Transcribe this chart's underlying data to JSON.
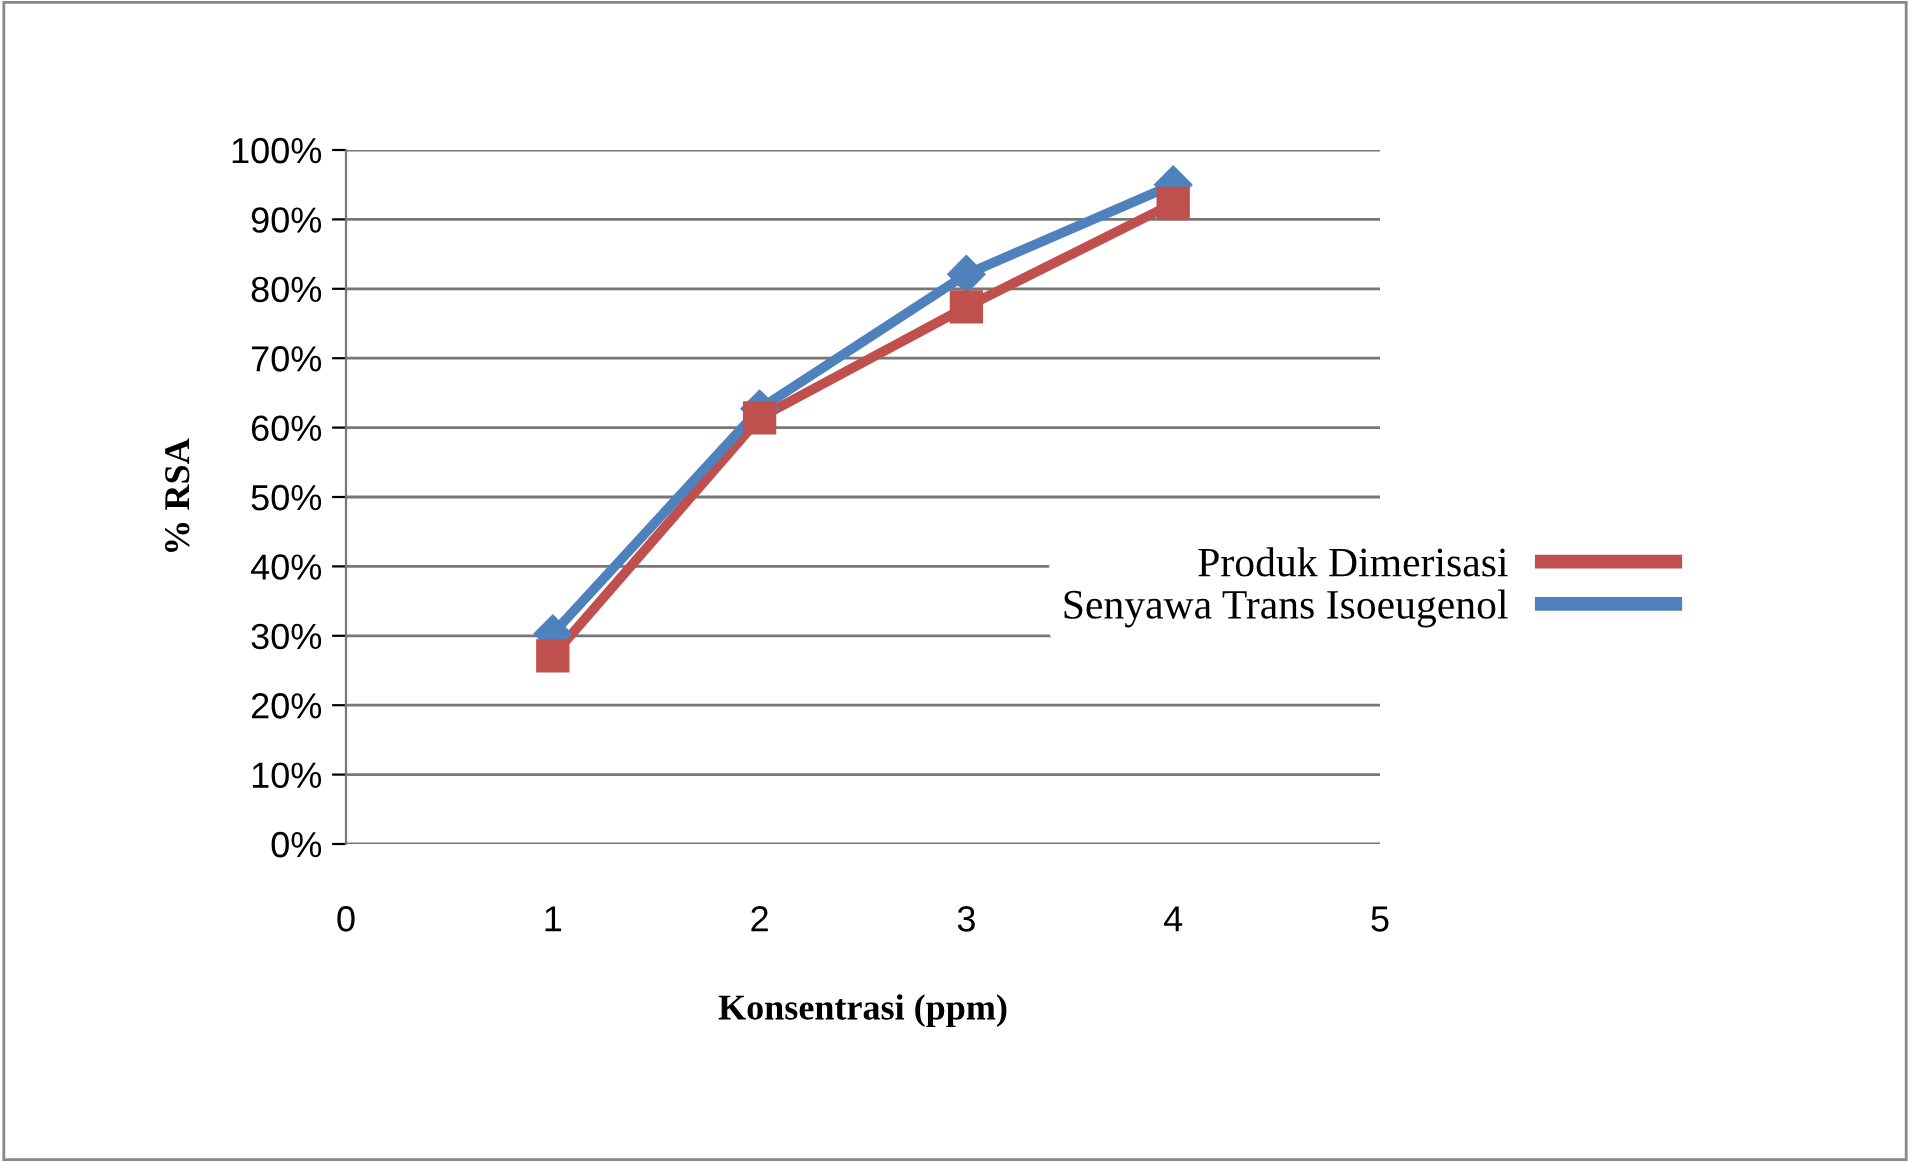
{
  "chart_data": {
    "type": "line",
    "xlabel": "Konsentrasi (ppm)",
    "ylabel": "% RSA",
    "x": [
      1,
      2,
      3,
      4
    ],
    "series": [
      {
        "name": "Produk Dimerisasi",
        "color": "#c0504d",
        "marker": "square",
        "values": [
          27.1,
          61.4,
          77.4,
          92.3
        ]
      },
      {
        "name": "Senyawa Trans Isoeugenol",
        "color": "#4f81bd",
        "marker": "diamond",
        "values": [
          30.3,
          62.7,
          82.1,
          95.0
        ]
      }
    ],
    "xlim": [
      0,
      5
    ],
    "xticks": [
      0,
      1,
      2,
      3,
      4,
      5
    ],
    "ylim": [
      0,
      100
    ],
    "yticks": [
      {
        "value": 0,
        "label": "0%"
      },
      {
        "value": 10,
        "label": "10%"
      },
      {
        "value": 20,
        "label": "20%"
      },
      {
        "value": 30,
        "label": "30%"
      },
      {
        "value": 40,
        "label": "40%"
      },
      {
        "value": 50,
        "label": "50%"
      },
      {
        "value": 60,
        "label": "60%"
      },
      {
        "value": 70,
        "label": "70%"
      },
      {
        "value": 80,
        "label": "80%"
      },
      {
        "value": 90,
        "label": "90%"
      },
      {
        "value": 100,
        "label": "100%"
      }
    ],
    "grid": "y",
    "legend": "right",
    "line_style": "solid"
  }
}
